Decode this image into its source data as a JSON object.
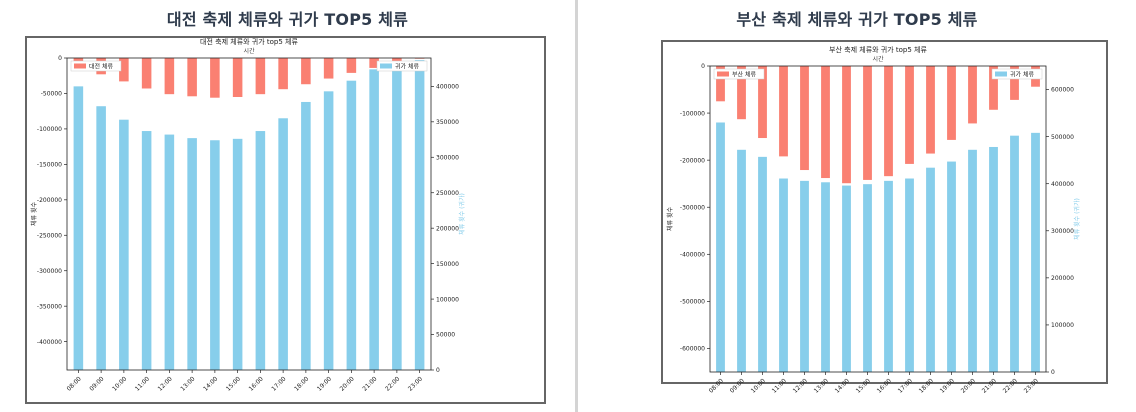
{
  "page": {
    "left_heading": "대전 축제 체류와 귀가 TOP5 체류",
    "right_heading": "부산 축제 체류와 귀가 TOP5 체류"
  },
  "chart_data": [
    {
      "type": "bar",
      "title": "대전 축제 체류와 귀가 top5 체류",
      "subtitle": "시간",
      "categories": [
        "08:00",
        "09:00",
        "10:00",
        "11:00",
        "12:00",
        "13:00",
        "14:00",
        "15:00",
        "16:00",
        "17:00",
        "18:00",
        "19:00",
        "20:00",
        "21:00",
        "22:00",
        "23:00"
      ],
      "series": [
        {
          "name": "대전 체류",
          "axis": "left",
          "color": "#fa8072",
          "values": [
            -5000,
            -23000,
            -33000,
            -43000,
            -51000,
            -54000,
            -56000,
            -55000,
            -51000,
            -44000,
            -37000,
            -29000,
            -21000,
            -14000,
            -5000,
            -1000
          ]
        },
        {
          "name": "귀가 체류",
          "axis": "right",
          "color": "#87ceeb",
          "values": [
            400000,
            372000,
            353000,
            337000,
            332000,
            327000,
            324000,
            326000,
            337000,
            355000,
            378000,
            393000,
            408000,
            424000,
            434000,
            437000
          ]
        }
      ],
      "ylabel_left": "체류 횟수",
      "ylabel_right": "체류 횟수 (귀가)",
      "ylim_left": [
        -440000,
        0
      ],
      "ylim_right": [
        0,
        440000
      ],
      "yticks_left": [
        0,
        -50000,
        -100000,
        -150000,
        -200000,
        -250000,
        -300000,
        -350000,
        -400000
      ],
      "yticks_right": [
        0,
        50000,
        100000,
        150000,
        200000,
        250000,
        300000,
        350000,
        400000
      ],
      "ytick_labels_left": [
        "0",
        "-50000",
        "-100000",
        "-150000",
        "-200000",
        "-250000",
        "-300000",
        "-350000",
        "-400000"
      ],
      "ytick_labels_right": [
        "0",
        "50000",
        "100000",
        "150000",
        "200000",
        "250000",
        "300000",
        "350000",
        "400000"
      ],
      "legend_left": "top-left",
      "legend_right": "top-right",
      "grid": false
    },
    {
      "type": "bar",
      "title": "부산 축제 체류와 귀가 top5 체류",
      "subtitle": "시간",
      "categories": [
        "08:00",
        "09:00",
        "10:00",
        "11:00",
        "12:00",
        "13:00",
        "14:00",
        "15:00",
        "16:00",
        "17:00",
        "18:00",
        "19:00",
        "20:00",
        "21:00",
        "22:00",
        "23:00"
      ],
      "series": [
        {
          "name": "부산 체류",
          "axis": "left",
          "color": "#fa8072",
          "values": [
            -75000,
            -113000,
            -153000,
            -192000,
            -221000,
            -238000,
            -249000,
            -242000,
            -234000,
            -208000,
            -186000,
            -157000,
            -122000,
            -93000,
            -72000,
            -44000
          ]
        },
        {
          "name": "귀가 체류",
          "axis": "right",
          "color": "#87ceeb",
          "values": [
            530000,
            472000,
            457000,
            411000,
            406000,
            403000,
            396000,
            399000,
            406000,
            411000,
            434000,
            447000,
            472000,
            478000,
            502000,
            508000
          ]
        }
      ],
      "ylabel_left": "체류 횟수",
      "ylabel_right": "체류 횟수 (귀가)",
      "ylim_left": [
        -650000,
        0
      ],
      "ylim_right": [
        0,
        650000
      ],
      "yticks_left": [
        0,
        -100000,
        -200000,
        -300000,
        -400000,
        -500000,
        -600000
      ],
      "yticks_right": [
        0,
        100000,
        200000,
        300000,
        400000,
        500000,
        600000
      ],
      "ytick_labels_left": [
        "0",
        "-100000",
        "-200000",
        "-300000",
        "-400000",
        "-500000",
        "-600000"
      ],
      "ytick_labels_right": [
        "0",
        "100000",
        "200000",
        "300000",
        "400000",
        "500000",
        "600000"
      ],
      "legend_left": "top-left",
      "legend_right": "top-right",
      "grid": false
    }
  ]
}
